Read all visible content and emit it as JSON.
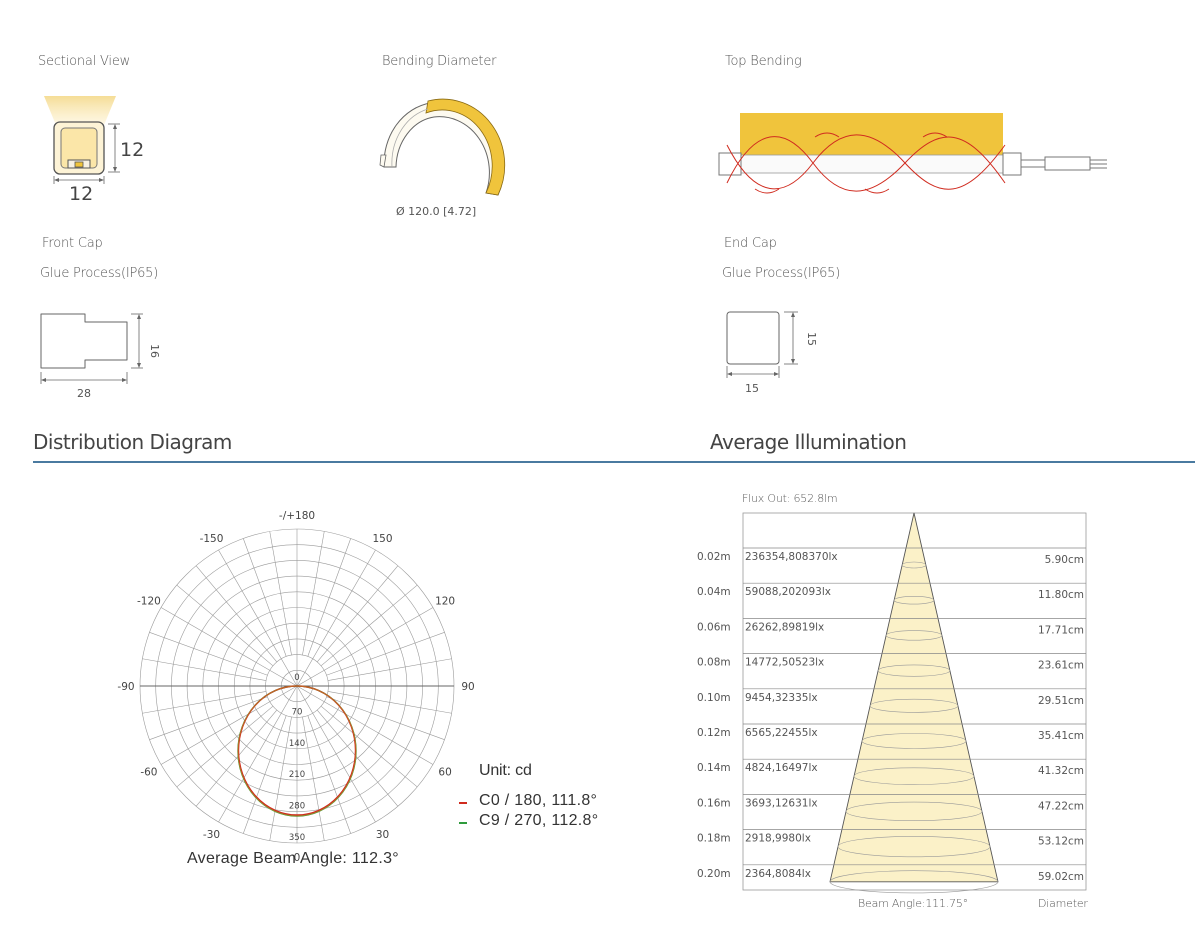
{
  "sections": {
    "sectional_view": "Sectional View",
    "bending_diameter": "Bending Diameter",
    "top_bending": "Top Bending",
    "front_cap": "Front Cap",
    "front_glue": "Glue Process(IP65)",
    "end_cap": "End Cap",
    "end_glue": "Glue Process(IP65)"
  },
  "dimensions": {
    "sectional_height": "12",
    "sectional_width": "12",
    "bending_diameter": "Ø 120.0 [4.72]",
    "front_cap_height": "16",
    "front_cap_width": "28",
    "end_cap_height": "15",
    "end_cap_width": "15"
  },
  "headings": {
    "distribution": "Distribution Diagram",
    "illumination": "Average Illumination"
  },
  "colors": {
    "accent_yellow": "#f0c43c",
    "rule_blue": "#4a7aa0",
    "c0_red": "#d02b1f",
    "c9_green": "#2f9b3c",
    "beam_fill": "#fbf1c8"
  },
  "polar": {
    "angle_labels": [
      "-/+180",
      "150",
      "-150",
      "120",
      "-120",
      "90",
      "-90",
      "60",
      "-60",
      "30",
      "-30",
      "0"
    ],
    "radial_labels": [
      "0",
      "70",
      "140",
      "210",
      "280",
      "350"
    ],
    "unit": "Unit: cd",
    "legend": [
      {
        "label": "C0 / 180, 111.8°",
        "color": "#d02b1f"
      },
      {
        "label": "C9 / 270, 112.8°",
        "color": "#2f9b3c"
      }
    ],
    "average_beam_angle": "Average Beam Angle: 112.3°"
  },
  "illumination": {
    "flux_out": "Flux Out:  652.8lm",
    "beam_angle": "Beam Angle:111.75°",
    "diameter_label": "Diameter",
    "rows": [
      {
        "distance": "0.02m",
        "lux": "236354,808370lx",
        "diameter": "5.90cm"
      },
      {
        "distance": "0.04m",
        "lux": "59088,202093lx",
        "diameter": "11.80cm"
      },
      {
        "distance": "0.06m",
        "lux": "26262,89819lx",
        "diameter": "17.71cm"
      },
      {
        "distance": "0.08m",
        "lux": "14772,50523lx",
        "diameter": "23.61cm"
      },
      {
        "distance": "0.10m",
        "lux": "9454,32335lx",
        "diameter": "29.51cm"
      },
      {
        "distance": "0.12m",
        "lux": "6565,22455lx",
        "diameter": "35.41cm"
      },
      {
        "distance": "0.14m",
        "lux": "4824,16497lx",
        "diameter": "41.32cm"
      },
      {
        "distance": "0.16m",
        "lux": "3693,12631lx",
        "diameter": "47.22cm"
      },
      {
        "distance": "0.18m",
        "lux": "2918,9980lx",
        "diameter": "53.12cm"
      },
      {
        "distance": "0.20m",
        "lux": "2364,8084lx",
        "diameter": "59.02cm"
      }
    ]
  }
}
